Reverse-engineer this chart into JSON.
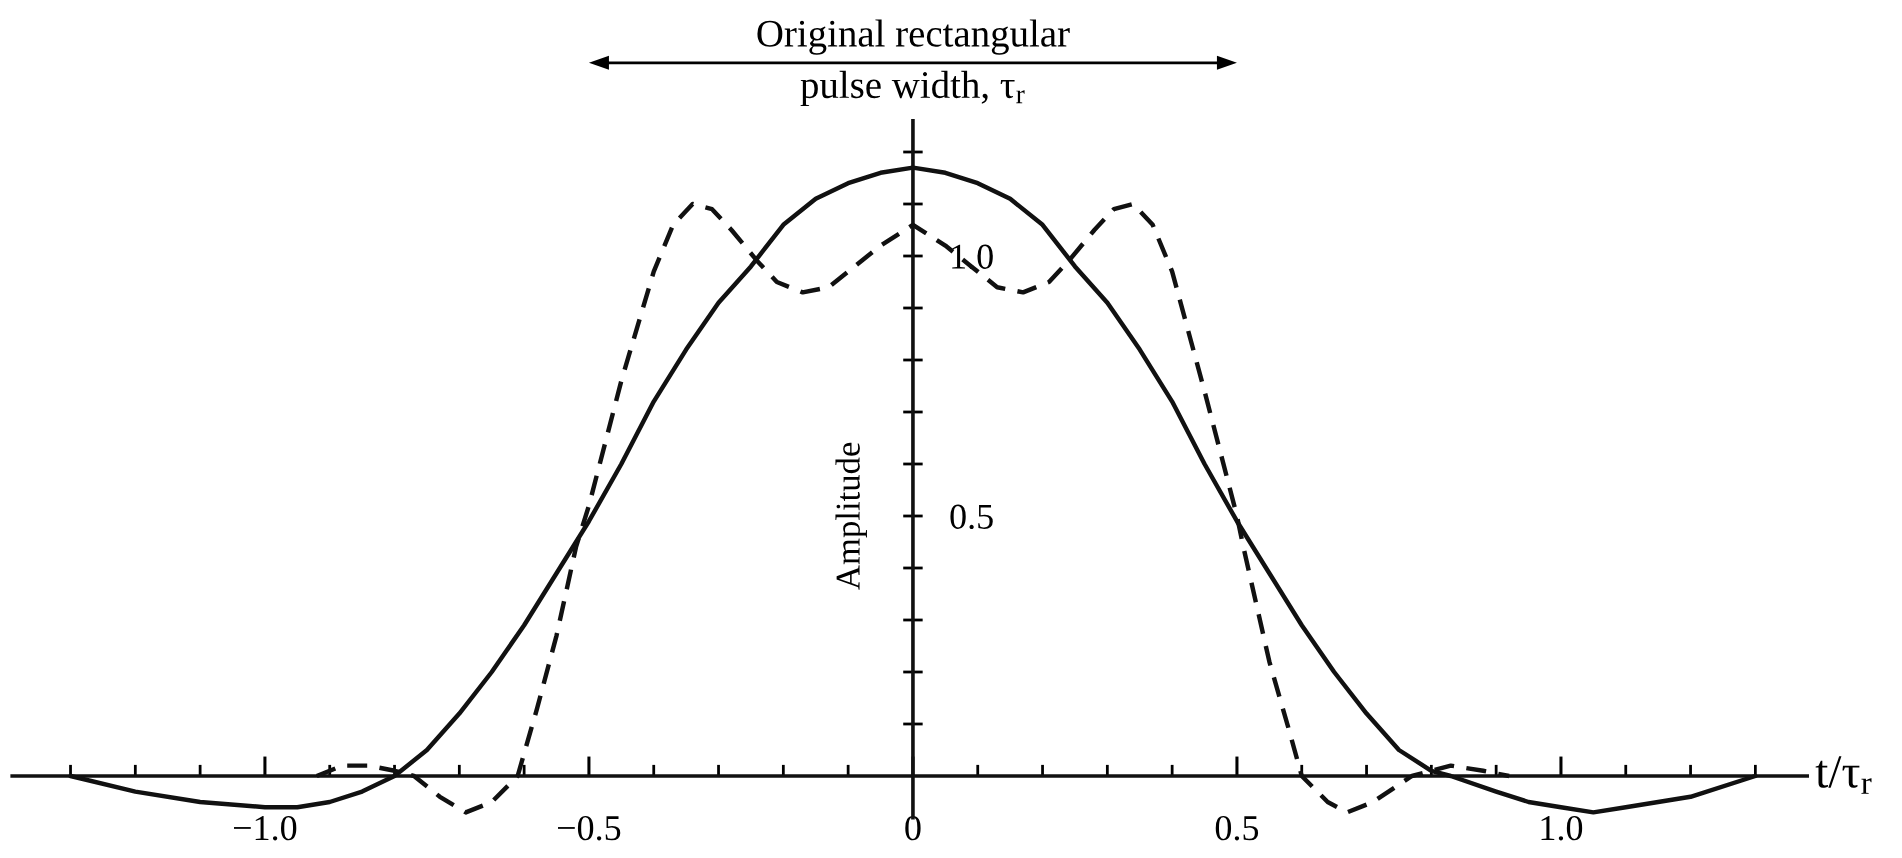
{
  "chart_data": {
    "type": "line",
    "xlabel": "t/τ$_{r}$",
    "ylabel": "Amplitude",
    "annotations": [
      "Original rectangular\npulse width, τ$_{r}$"
    ],
    "xlim": [
      -1.39,
      1.38
    ],
    "ylim": [
      -0.08,
      1.26
    ],
    "xticks": [
      {
        "value": -1.3,
        "label": null
      },
      {
        "value": -1.2,
        "label": null
      },
      {
        "value": -1.1,
        "label": null
      },
      {
        "value": -1.0,
        "label": "−1.0"
      },
      {
        "value": -0.9,
        "label": null
      },
      {
        "value": -0.8,
        "label": null
      },
      {
        "value": -0.7,
        "label": null
      },
      {
        "value": -0.6,
        "label": null
      },
      {
        "value": -0.5,
        "label": "−0.5"
      },
      {
        "value": -0.4,
        "label": null
      },
      {
        "value": -0.3,
        "label": null
      },
      {
        "value": -0.2,
        "label": null
      },
      {
        "value": -0.1,
        "label": null
      },
      0,
      {
        "value": 0.1,
        "label": null
      },
      {
        "value": 0.2,
        "label": null
      },
      {
        "value": 0.3,
        "label": null
      },
      {
        "value": 0.4,
        "label": null
      },
      0.5,
      {
        "value": 0.6,
        "label": null
      },
      {
        "value": 0.7,
        "label": null
      },
      {
        "value": 0.8,
        "label": null
      },
      {
        "value": 0.9,
        "label": null
      },
      {
        "value": 1.0,
        "label": "1.0"
      },
      {
        "value": 1.1,
        "label": null
      },
      {
        "value": 1.2,
        "label": null
      },
      {
        "value": 1.3,
        "label": null
      }
    ],
    "yticks": [
      {
        "value": 0.1,
        "label": null
      },
      {
        "value": 0.2,
        "label": null
      },
      {
        "value": 0.3,
        "label": null
      },
      {
        "value": 0.4,
        "label": null
      },
      0.5,
      {
        "value": 0.6,
        "label": null
      },
      {
        "value": 0.7,
        "label": null
      },
      {
        "value": 0.8,
        "label": null
      },
      {
        "value": 0.9,
        "label": null
      },
      {
        "value": 1.0,
        "label": "1.0"
      },
      {
        "value": 1.1,
        "label": null
      },
      {
        "value": 1.2,
        "label": null
      }
    ],
    "series": [
      {
        "color": "#111111",
        "line_style": "solid",
        "x": [
          -1.3,
          -1.2,
          -1.1,
          -1.0,
          -0.95,
          -0.9,
          -0.85,
          -0.8,
          -0.75,
          -0.7,
          -0.65,
          -0.6,
          -0.55,
          -0.5,
          -0.45,
          -0.4,
          -0.35,
          -0.3,
          -0.25,
          -0.2,
          -0.15,
          -0.1,
          -0.05,
          0,
          0.05,
          0.1,
          0.15,
          0.2,
          0.25,
          0.3,
          0.35,
          0.4,
          0.45,
          0.5,
          0.55,
          0.6,
          0.65,
          0.7,
          0.75,
          0.8,
          0.83,
          0.9,
          0.95,
          1.0,
          1.05,
          1.1,
          1.2,
          1.3
        ],
        "values": [
          0.0,
          -0.03,
          -0.05,
          -0.06,
          -0.06,
          -0.05,
          -0.03,
          0.0,
          0.05,
          0.12,
          0.2,
          0.29,
          0.39,
          0.49,
          0.6,
          0.72,
          0.82,
          0.91,
          0.98,
          1.06,
          1.11,
          1.14,
          1.16,
          1.17,
          1.16,
          1.14,
          1.11,
          1.06,
          0.98,
          0.91,
          0.82,
          0.72,
          0.6,
          0.49,
          0.39,
          0.29,
          0.2,
          0.12,
          0.05,
          0.01,
          0.0,
          -0.03,
          -0.05,
          -0.06,
          -0.07,
          -0.06,
          -0.04,
          0.0
        ]
      },
      {
        "color": "#111111",
        "line_style": "dashed",
        "x": [
          -0.92,
          -0.88,
          -0.84,
          -0.8,
          -0.77,
          -0.73,
          -0.69,
          -0.65,
          -0.61,
          -0.58,
          -0.55,
          -0.52,
          -0.5,
          -0.45,
          -0.4,
          -0.37,
          -0.34,
          -0.31,
          -0.28,
          -0.24,
          -0.21,
          -0.17,
          -0.13,
          -0.09,
          -0.05,
          0,
          0.05,
          0.09,
          0.13,
          0.17,
          0.21,
          0.24,
          0.28,
          0.31,
          0.34,
          0.37,
          0.4,
          0.45,
          0.5,
          0.51,
          0.55,
          0.58,
          0.6,
          0.64,
          0.67,
          0.71,
          0.77,
          0.8,
          0.83,
          0.88,
          0.92
        ],
        "values": [
          0.0,
          0.02,
          0.02,
          0.01,
          0.0,
          -0.04,
          -0.07,
          -0.05,
          0.0,
          0.13,
          0.27,
          0.44,
          0.52,
          0.76,
          0.97,
          1.06,
          1.1,
          1.09,
          1.05,
          0.99,
          0.95,
          0.93,
          0.94,
          0.98,
          1.02,
          1.06,
          1.02,
          0.98,
          0.94,
          0.93,
          0.95,
          0.99,
          1.05,
          1.09,
          1.1,
          1.06,
          0.97,
          0.74,
          0.5,
          0.44,
          0.22,
          0.09,
          0.0,
          -0.05,
          -0.07,
          -0.05,
          0.0,
          0.01,
          0.02,
          0.01,
          0.0
        ]
      }
    ]
  }
}
